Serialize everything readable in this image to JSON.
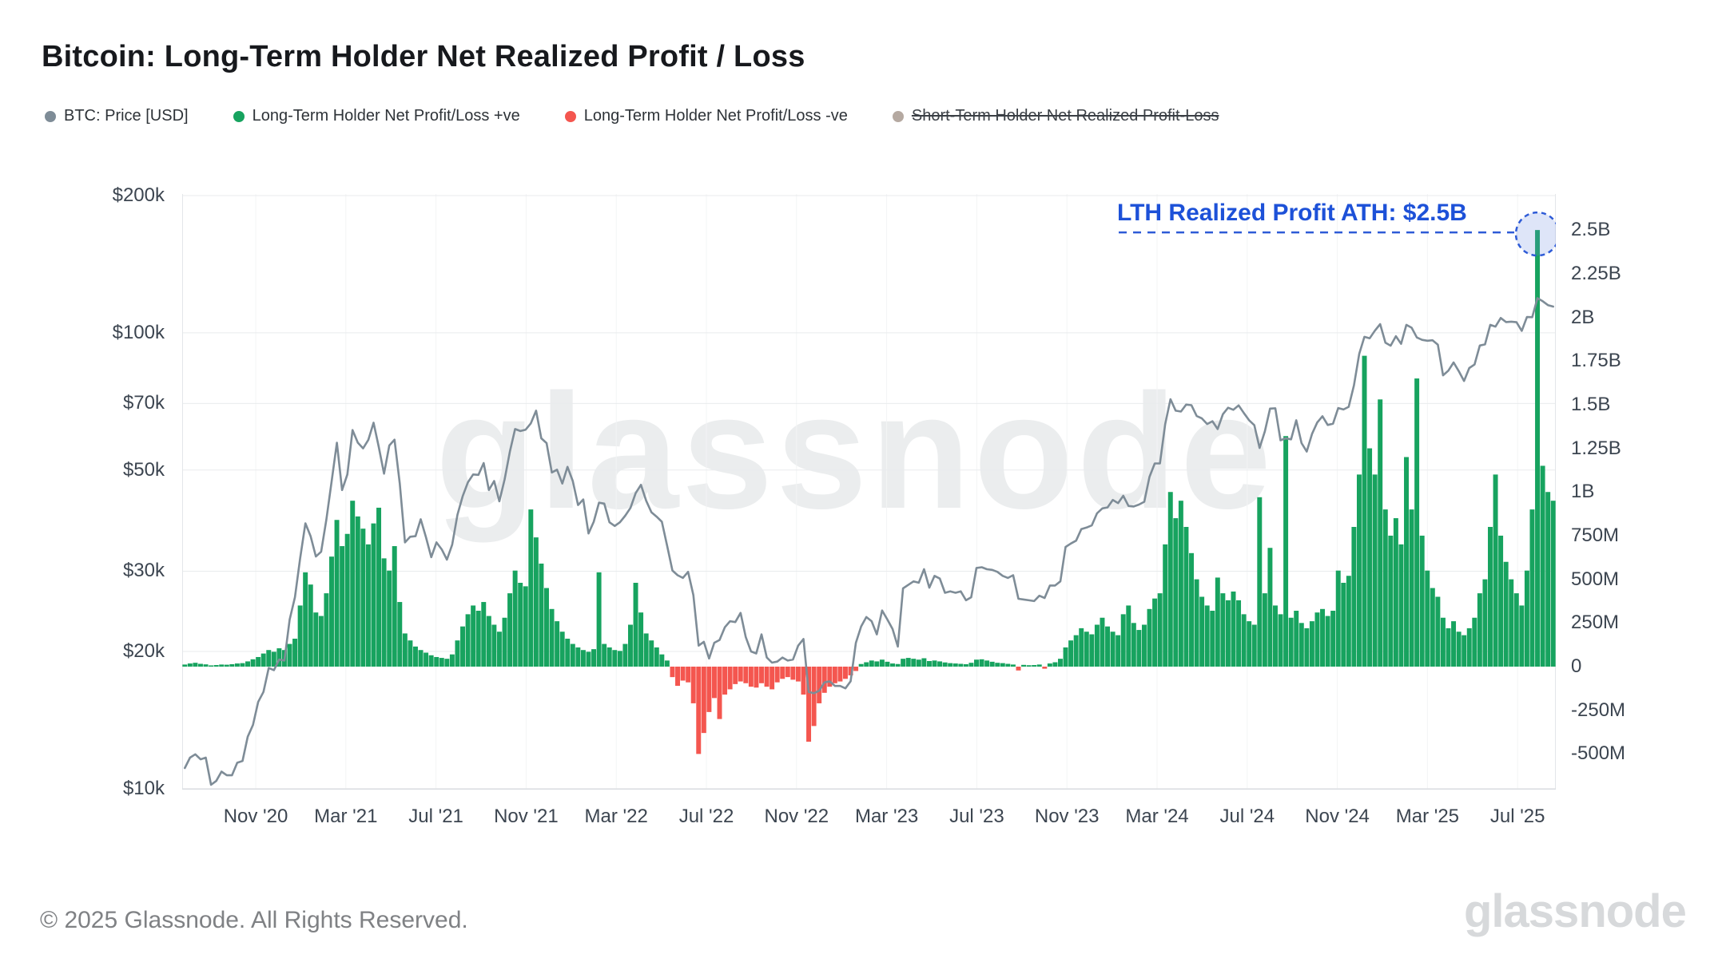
{
  "title": "Bitcoin: Long-Term Holder Net Realized Profit / Loss",
  "watermark": "glassnode",
  "legend": [
    {
      "label": "BTC: Price [USD]",
      "color": "#7e8c97",
      "disabled": false
    },
    {
      "label": "Long-Term Holder Net Profit/Loss +ve",
      "color": "#17a35f",
      "disabled": false
    },
    {
      "label": "Long-Term Holder Net Profit/Loss -ve",
      "color": "#f4564f",
      "disabled": false
    },
    {
      "label": "Short-Term Holder Net Realized Profit-Loss",
      "color": "#b5a9a1",
      "disabled": true
    }
  ],
  "annotation": {
    "text": "LTH Realized Profit ATH: $2.5B",
    "color": "#1d51d8",
    "line_color": "#2e5bd7",
    "marker_fill": "rgba(105,135,225,0.22)",
    "value_millions": 2500
  },
  "footer": {
    "copyright": "© 2025 Glassnode. All Rights Reserved.",
    "logo": "glassnode"
  },
  "axes": {
    "price_axis": {
      "side": "left",
      "scale": "log",
      "ticks": [
        {
          "label": "$200k",
          "value": 200000
        },
        {
          "label": "$100k",
          "value": 100000
        },
        {
          "label": "$70k",
          "value": 70000
        },
        {
          "label": "$50k",
          "value": 50000
        },
        {
          "label": "$30k",
          "value": 30000
        },
        {
          "label": "$20k",
          "value": 20000
        },
        {
          "label": "$10k",
          "value": 10000
        }
      ]
    },
    "value_axis": {
      "side": "right",
      "scale": "linear",
      "ticks": [
        {
          "label": "2.5B",
          "value": 2500
        },
        {
          "label": "2.25B",
          "value": 2250
        },
        {
          "label": "2B",
          "value": 2000
        },
        {
          "label": "1.75B",
          "value": 1750
        },
        {
          "label": "1.5B",
          "value": 1500
        },
        {
          "label": "1.25B",
          "value": 1250
        },
        {
          "label": "1B",
          "value": 1000
        },
        {
          "label": "750M",
          "value": 750
        },
        {
          "label": "500M",
          "value": 500
        },
        {
          "label": "250M",
          "value": 250
        },
        {
          "label": "0",
          "value": 0
        },
        {
          "label": "-250M",
          "value": -250
        },
        {
          "label": "-500M",
          "value": -500
        }
      ]
    },
    "x_ticks": [
      "Nov '20",
      "Mar '21",
      "Jul '21",
      "Nov '21",
      "Mar '22",
      "Jul '22",
      "Nov '22",
      "Mar '23",
      "Jul '23",
      "Nov '23",
      "Mar '24",
      "Jul '24",
      "Nov '24",
      "Mar '25",
      "Jul '25"
    ]
  },
  "chart_data": {
    "type": "mixed",
    "title": "Bitcoin: Long-Term Holder Net Realized Profit / Loss",
    "x_start": "2020-08-02",
    "x_interval_days": 7,
    "x_range": [
      "2020-08-02",
      "2025-08-03"
    ],
    "grid": true,
    "legend_position": "top",
    "annotations": [
      {
        "text": "LTH Realized Profit ATH: $2.5B",
        "series": "lth_net_profit_loss",
        "date": "2025-07-13",
        "value_millions": 2500
      }
    ],
    "series": [
      {
        "name": "BTC: Price [USD]",
        "type": "line",
        "axis": "left",
        "scale": "log",
        "unit": "USD (thousands)",
        "ylim": [
          10,
          200
        ],
        "color": "#7e8c97",
        "values_k": [
          11.1,
          11.7,
          11.9,
          11.6,
          11.7,
          10.2,
          10.4,
          10.9,
          10.7,
          10.7,
          11.4,
          11.5,
          13.0,
          13.8,
          15.5,
          16.3,
          18.4,
          18.2,
          19.2,
          19.1,
          23.5,
          26.3,
          32.0,
          38.2,
          35.8,
          32.3,
          33.1,
          38.9,
          47.2,
          57.4,
          45.2,
          48.9,
          61.2,
          57.4,
          55.8,
          58.2,
          63.5,
          56.2,
          49.1,
          56.6,
          58.3,
          46.7,
          34.7,
          35.7,
          35.8,
          39.0,
          35.6,
          32.2,
          34.7,
          33.5,
          31.8,
          34.3,
          39.9,
          43.8,
          47.0,
          48.9,
          48.8,
          51.8,
          45.2,
          47.3,
          42.7,
          47.7,
          54.9,
          61.5,
          60.9,
          61.3,
          63.3,
          67.5,
          58.7,
          57.3,
          49.4,
          50.1,
          46.7,
          50.8,
          47.3,
          41.9,
          43.1,
          36.3,
          38.5,
          42.4,
          42.2,
          38.4,
          37.7,
          38.4,
          39.7,
          41.3,
          44.5,
          46.4,
          42.8,
          40.4,
          39.5,
          38.5,
          34.1,
          30.1,
          29.4,
          29.0,
          29.9,
          26.6,
          20.6,
          21.0,
          19.3,
          20.9,
          21.2,
          22.6,
          23.3,
          23.2,
          24.3,
          21.5,
          20.0,
          19.8,
          21.8,
          19.4,
          18.9,
          19.0,
          19.4,
          19.1,
          19.2,
          20.6,
          21.3,
          16.3,
          16.2,
          16.4,
          17.1,
          17.2,
          16.8,
          16.8,
          16.6,
          17.2,
          20.9,
          22.7,
          23.8,
          23.3,
          21.8,
          24.6,
          23.5,
          22.4,
          20.5,
          27.5,
          28.0,
          28.5,
          28.3,
          30.3,
          27.6,
          29.3,
          28.9,
          26.9,
          27.1,
          26.9,
          27.1,
          25.9,
          26.3,
          30.5,
          30.6,
          30.3,
          30.2,
          29.9,
          29.3,
          29.0,
          29.4,
          26.1,
          26.0,
          25.9,
          25.8,
          26.5,
          26.2,
          27.9,
          27.9,
          28.5,
          33.9,
          34.5,
          35.0,
          37.1,
          37.4,
          37.8,
          40.2,
          41.2,
          41.4,
          43.0,
          42.3,
          43.9,
          41.7,
          41.6,
          42.0,
          42.6,
          48.3,
          51.7,
          51.7,
          63.1,
          71.5,
          67.5,
          67.2,
          69.6,
          69.4,
          65.7,
          64.9,
          63.1,
          64.0,
          61.5,
          66.3,
          68.5,
          67.8,
          69.3,
          66.7,
          64.3,
          62.7,
          55.9,
          60.8,
          68.2,
          68.3,
          58.1,
          58.7,
          58.4,
          64.3,
          57.3,
          54.9,
          60.0,
          63.6,
          65.6,
          62.8,
          63.2,
          68.4,
          67.9,
          68.8,
          76.7,
          89.9,
          98.0,
          97.3,
          101.1,
          104.5,
          95.1,
          93.7,
          98.3,
          94.6,
          104.1,
          102.6,
          97.7,
          96.5,
          96.1,
          96.3,
          94.2,
          80.7,
          82.6,
          86.1,
          82.4,
          78.4,
          83.7,
          85.2,
          93.8,
          94.3,
          104.1,
          103.2,
          107.8,
          105.6,
          105.8,
          105.5,
          101.0,
          108.3,
          108.2,
          119.1,
          117.3,
          115.0,
          114.2
        ]
      },
      {
        "name": "Long-Term Holder Net Realized Profit/Loss",
        "type": "bar",
        "axis": "right",
        "scale": "linear",
        "unit": "USD (millions)",
        "ylim": [
          -500,
          2500
        ],
        "color_positive": "#17a35f",
        "color_negative": "#f4564f",
        "values_m": [
          12,
          18,
          22,
          16,
          13,
          7,
          9,
          12,
          11,
          14,
          18,
          20,
          30,
          42,
          55,
          75,
          95,
          85,
          105,
          95,
          130,
          160,
          350,
          540,
          470,
          310,
          290,
          420,
          630,
          840,
          690,
          760,
          950,
          860,
          790,
          700,
          820,
          910,
          620,
          550,
          690,
          370,
          190,
          150,
          115,
          95,
          80,
          65,
          55,
          50,
          45,
          70,
          150,
          230,
          300,
          350,
          320,
          370,
          290,
          240,
          200,
          280,
          420,
          550,
          480,
          460,
          900,
          740,
          590,
          450,
          330,
          260,
          200,
          160,
          130,
          110,
          95,
          85,
          100,
          540,
          130,
          110,
          95,
          90,
          130,
          240,
          480,
          310,
          190,
          150,
          110,
          70,
          35,
          -60,
          -110,
          -80,
          -90,
          -210,
          -500,
          -380,
          -260,
          -180,
          -300,
          -160,
          -130,
          -100,
          -85,
          -95,
          -115,
          -120,
          -95,
          -115,
          -130,
          -90,
          -70,
          -60,
          -75,
          -85,
          -160,
          -430,
          -340,
          -210,
          -150,
          -115,
          -95,
          -85,
          -70,
          -50,
          -25,
          15,
          25,
          35,
          30,
          40,
          28,
          18,
          15,
          45,
          50,
          45,
          40,
          48,
          32,
          35,
          30,
          24,
          20,
          18,
          16,
          14,
          22,
          40,
          42,
          35,
          28,
          22,
          20,
          16,
          12,
          -22,
          10,
          8,
          9,
          12,
          -12,
          18,
          25,
          45,
          110,
          150,
          180,
          220,
          200,
          185,
          240,
          280,
          230,
          200,
          180,
          300,
          350,
          250,
          210,
          240,
          330,
          390,
          420,
          700,
          1000,
          850,
          950,
          800,
          650,
          500,
          400,
          350,
          320,
          510,
          420,
          380,
          430,
          380,
          300,
          260,
          240,
          970,
          420,
          680,
          350,
          300,
          1320,
          280,
          320,
          250,
          220,
          260,
          310,
          330,
          290,
          320,
          550,
          480,
          520,
          800,
          1100,
          1780,
          1250,
          1100,
          1530,
          900,
          750,
          850,
          700,
          1200,
          900,
          1650,
          750,
          550,
          450,
          400,
          280,
          220,
          260,
          200,
          180,
          220,
          280,
          420,
          500,
          800,
          1100,
          750,
          600,
          500,
          420,
          350,
          550,
          900,
          2500,
          1150,
          1000,
          950
        ]
      }
    ]
  }
}
